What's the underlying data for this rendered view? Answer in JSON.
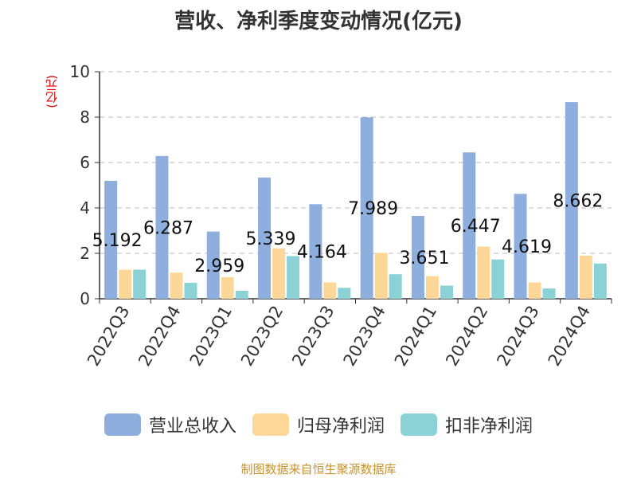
{
  "chart_data": {
    "type": "bar",
    "title": "营收、净利季度变动情况(亿元)",
    "ylabel": "(亿元)",
    "ylim": [
      0,
      10
    ],
    "yticks": [
      0,
      2,
      4,
      6,
      8,
      10
    ],
    "grid": true,
    "legend_position": "bottom",
    "categories": [
      "2022Q3",
      "2022Q4",
      "2023Q1",
      "2023Q2",
      "2023Q3",
      "2023Q4",
      "2024Q1",
      "2024Q2",
      "2024Q3",
      "2024Q4"
    ],
    "series": [
      {
        "name": "营业总收入",
        "color": "#8eaedd",
        "values": [
          5.192,
          6.287,
          2.959,
          5.339,
          4.164,
          7.989,
          3.651,
          6.447,
          4.619,
          8.662
        ],
        "labels": [
          "5.192",
          "6.287",
          "2.959",
          "5.339",
          "4.164",
          "7.989",
          "3.651",
          "6.447",
          "4.619",
          "8.662"
        ]
      },
      {
        "name": "归母净利润",
        "color": "#fdd798",
        "values": [
          1.28,
          1.15,
          0.95,
          2.22,
          0.72,
          2.02,
          1.0,
          2.3,
          0.72,
          1.9
        ]
      },
      {
        "name": "扣非净利润",
        "color": "#8ad2d6",
        "values": [
          1.28,
          0.7,
          0.35,
          1.88,
          0.48,
          1.08,
          0.58,
          1.73,
          0.45,
          1.55
        ]
      }
    ]
  },
  "source": "制图数据来自恒生聚源数据库"
}
